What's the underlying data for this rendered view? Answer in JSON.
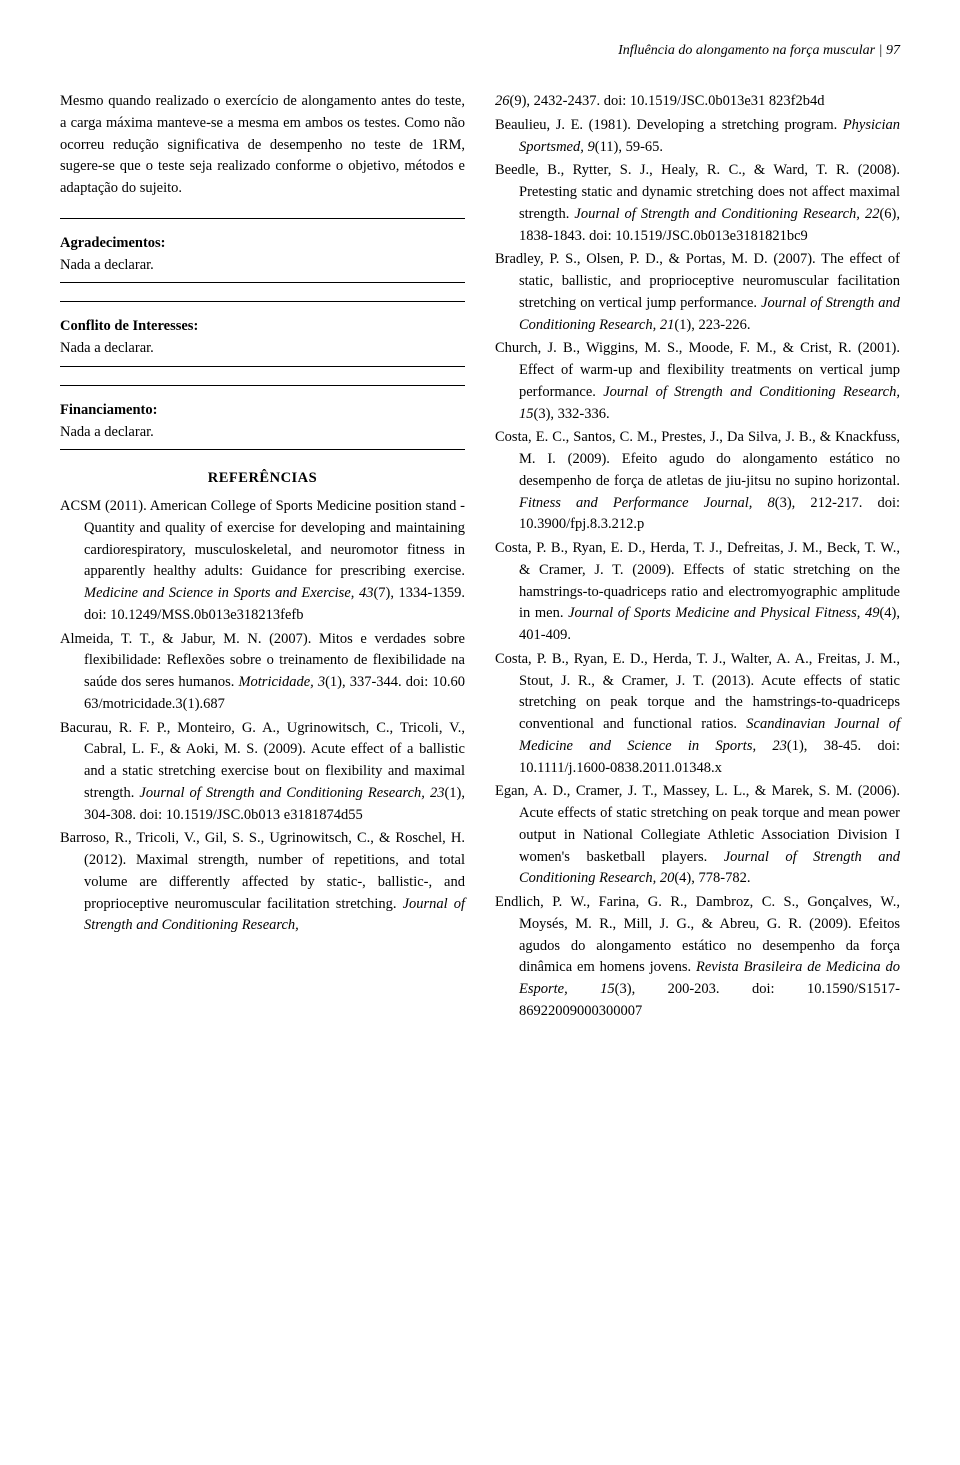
{
  "header": {
    "running_title": "Influência do alongamento na força muscular",
    "page_number": "97"
  },
  "left": {
    "body_para": "Mesmo quando realizado o exercício de alongamento antes do teste, a carga máxima manteve-se a mesma em ambos os testes. Como não ocorreu redução significativa de desempenho no teste de 1RM, sugere-se que o teste seja realizado conforme o objetivo, métodos e adaptação do sujeito.",
    "ack_label": "Agradecimentos:",
    "ack_text": "Nada a declarar.",
    "coi_label": "Conflito de Interesses:",
    "coi_text": "Nada a declarar.",
    "fund_label": "Financiamento:",
    "fund_text": "Nada a declarar.",
    "refs_heading": "REFERÊNCIAS"
  },
  "refs_left": [
    {
      "pre": "ACSM (2011). American College of Sports Medicine position stand - Quantity and quality of exercise for developing and maintaining cardiorespiratory, musculoskeletal, and neuromotor fitness in apparently healthy adults: Guidance for prescribing exercise. ",
      "ital": "Medicine and Science in Sports and Exercise, 43",
      "post": "(7), 1334-1359. doi: 10.1249/MSS.0b013e318213fefb"
    },
    {
      "pre": "Almeida, T. T., & Jabur, M. N. (2007). Mitos e verdades sobre flexibilidade: Reflexões sobre o treinamento de flexibilidade na saúde dos seres humanos. ",
      "ital": "Motricidade, 3",
      "post": "(1), 337-344. doi: 10.60 63/motricidade.3(1).687"
    },
    {
      "pre": "Bacurau, R. F. P., Monteiro, G. A., Ugrinowitsch, C., Tricoli, V., Cabral, L. F., & Aoki, M. S. (2009). Acute effect of a ballistic and a static stretching exercise bout on flexibility and maximal strength. ",
      "ital": "Journal of Strength and Conditioning Research, 23",
      "post": "(1), 304-308. doi: 10.1519/JSC.0b013 e3181874d55"
    },
    {
      "pre": "Barroso, R., Tricoli, V., Gil, S. S., Ugrinowitsch, C., & Roschel, H. (2012). Maximal strength, number of repetitions, and total volume are differently affected by static-, ballistic-, and proprioceptive neuromuscular facilitation stretching. ",
      "ital": "Journal of Strength and Conditioning Research,",
      "post": ""
    }
  ],
  "refs_right": [
    {
      "pre": "",
      "ital": "26",
      "post": "(9), 2432-2437. doi: 10.1519/JSC.0b013e31 823f2b4d"
    },
    {
      "pre": "Beaulieu, J. E. (1981). Developing a stretching program. ",
      "ital": "Physician Sportsmed, 9",
      "post": "(11), 59-65."
    },
    {
      "pre": "Beedle, B., Rytter, S. J., Healy, R. C., & Ward, T. R. (2008). Pretesting static and dynamic stretching does not affect maximal strength. ",
      "ital": "Journal of Strength and Conditioning Research, 22",
      "post": "(6), 1838-1843. doi: 10.1519/JSC.0b013e3181821bc9"
    },
    {
      "pre": "Bradley, P. S., Olsen, P. D., & Portas, M. D. (2007). The effect of static, ballistic, and proprioceptive neuromuscular facilitation stretching on vertical jump performance. ",
      "ital": "Journal of Strength and Conditioning Research, 21",
      "post": "(1), 223-226."
    },
    {
      "pre": "Church, J. B., Wiggins, M. S., Moode, F. M., & Crist, R. (2001). Effect of warm-up and flexibility treatments on vertical jump performance. ",
      "ital": "Journal of Strength and Conditioning Research, 15",
      "post": "(3), 332-336."
    },
    {
      "pre": "Costa, E. C., Santos, C. M., Prestes, J., Da Silva, J. B., & Knackfuss, M. I. (2009). Efeito agudo do alongamento estático no desempenho de força de atletas de jiu-jitsu no supino horizontal. ",
      "ital": "Fitness and Performance Journal, 8",
      "post": "(3), 212-217. doi: 10.3900/fpj.8.3.212.p"
    },
    {
      "pre": "Costa, P. B., Ryan, E. D., Herda, T. J., Defreitas, J. M., Beck, T. W., & Cramer, J. T. (2009). Effects of static stretching on the hamstrings-to-quadriceps ratio and electromyographic amplitude in men. ",
      "ital": "Journal of Sports Medicine and Physical Fitness, 49",
      "post": "(4), 401-409."
    },
    {
      "pre": "Costa, P. B., Ryan, E. D., Herda, T. J., Walter, A. A., Freitas, J. M., Stout, J. R., & Cramer, J. T. (2013). Acute effects of static stretching on peak torque and the hamstrings-to-quadriceps conventional and functional ratios. ",
      "ital": "Scandinavian Journal of Medicine and Science in Sports, 23",
      "post": "(1), 38-45. doi: 10.1111/j.1600-0838.2011.01348.x"
    },
    {
      "pre": "Egan, A. D., Cramer, J. T., Massey, L. L., & Marek, S. M. (2006). Acute effects of static stretching on peak torque and mean power output in National Collegiate Athletic Association Division I women's basketball players. ",
      "ital": "Journal of Strength and Conditioning Research, 20",
      "post": "(4), 778-782."
    },
    {
      "pre": "Endlich, P. W., Farina, G. R., Dambroz, C. S., Gonçalves, W., Moysés, M. R., Mill, J. G., & Abreu, G. R. (2009). Efeitos agudos do alongamento estático no desempenho da força dinâmica em homens jovens. ",
      "ital": "Revista Brasileira de Medicina do Esporte, 15",
      "post": "(3), 200-203. doi: 10.1590/S1517-86922009000300007"
    }
  ]
}
